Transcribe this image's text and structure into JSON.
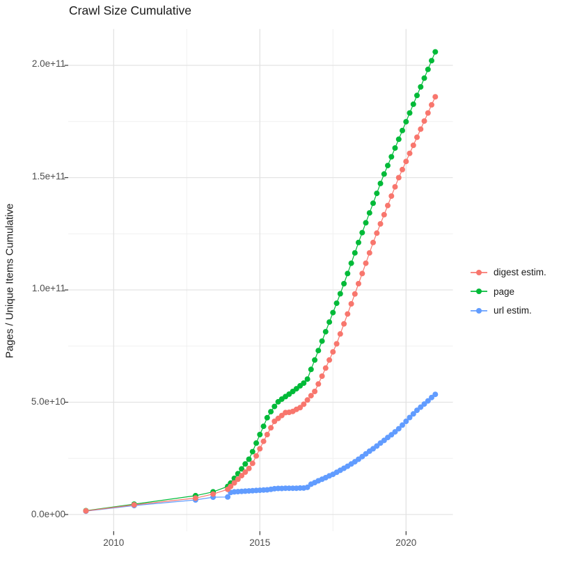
{
  "title": "Crawl Size Cumulative",
  "chart_data": {
    "type": "scatter",
    "title": "Crawl Size Cumulative",
    "xlabel": "",
    "ylabel": "Pages / Unique Items Cumulative",
    "x_tick_labels": [
      "2010",
      "2015",
      "2020"
    ],
    "x_tick_values": [
      2010,
      2015,
      2020
    ],
    "x_minor_values": [
      2012.5,
      2017.5
    ],
    "y_tick_labels": [
      "0.0e+00",
      "5.0e+10",
      "1.0e+11",
      "1.5e+11",
      "2.0e+11"
    ],
    "y_tick_values": [
      0,
      50,
      100,
      150,
      200
    ],
    "y_minor_values": [
      25,
      75,
      125,
      175
    ],
    "y_values_unit": "billions (1e9)",
    "xlim": [
      2008.45,
      2021.6
    ],
    "ylim_billions": [
      -8.6,
      216.2
    ],
    "grid": true,
    "legend_position": "right",
    "series": [
      {
        "name": "digest estim.",
        "color": "#F8766D",
        "points": [
          [
            2009.05,
            1.6
          ],
          [
            2010.7,
            4.3
          ],
          [
            2012.8,
            7.3
          ],
          [
            2013.4,
            9.1
          ],
          [
            2013.9,
            11.2
          ],
          [
            2014.0,
            12.5
          ],
          [
            2014.125,
            14.1
          ],
          [
            2014.25,
            15.7
          ],
          [
            2014.375,
            17.3
          ],
          [
            2014.5,
            18.9
          ],
          [
            2014.625,
            20.5
          ],
          [
            2014.75,
            22.8
          ],
          [
            2014.875,
            26.1
          ],
          [
            2015.0,
            29.3
          ],
          [
            2015.125,
            32.6
          ],
          [
            2015.25,
            35.6
          ],
          [
            2015.375,
            38.6
          ],
          [
            2015.5,
            41.5
          ],
          [
            2015.625,
            42.8
          ],
          [
            2015.75,
            44.1
          ],
          [
            2015.875,
            45.4
          ],
          [
            2016.0,
            45.5
          ],
          [
            2016.125,
            45.9
          ],
          [
            2016.25,
            46.8
          ],
          [
            2016.375,
            47.6
          ],
          [
            2016.5,
            49.1
          ],
          [
            2016.625,
            51.0
          ],
          [
            2016.75,
            52.9
          ],
          [
            2016.875,
            54.8
          ],
          [
            2017.0,
            58.1
          ],
          [
            2017.125,
            61.6
          ],
          [
            2017.25,
            65.2
          ],
          [
            2017.375,
            68.8
          ],
          [
            2017.5,
            72.4
          ],
          [
            2017.625,
            76.0
          ],
          [
            2017.75,
            80.4
          ],
          [
            2017.875,
            84.9
          ],
          [
            2018.0,
            89.3
          ],
          [
            2018.125,
            93.8
          ],
          [
            2018.25,
            98.2
          ],
          [
            2018.375,
            102.8
          ],
          [
            2018.5,
            107.3
          ],
          [
            2018.625,
            111.9
          ],
          [
            2018.75,
            116.5
          ],
          [
            2018.875,
            121.1
          ],
          [
            2019.0,
            125.3
          ],
          [
            2019.125,
            129.4
          ],
          [
            2019.25,
            133.5
          ],
          [
            2019.375,
            137.6
          ],
          [
            2019.5,
            141.8
          ],
          [
            2019.625,
            145.9
          ],
          [
            2019.75,
            150.0
          ],
          [
            2019.875,
            153.6
          ],
          [
            2020.0,
            157.2
          ],
          [
            2020.125,
            160.8
          ],
          [
            2020.25,
            164.4
          ],
          [
            2020.375,
            168.0
          ],
          [
            2020.5,
            171.6
          ],
          [
            2020.625,
            175.2
          ],
          [
            2020.75,
            178.8
          ],
          [
            2020.875,
            182.4
          ],
          [
            2021.0,
            186.0
          ]
        ]
      },
      {
        "name": "page",
        "color": "#00BA38",
        "points": [
          [
            2009.05,
            1.7
          ],
          [
            2010.7,
            4.6
          ],
          [
            2012.8,
            8.4
          ],
          [
            2013.4,
            10.1
          ],
          [
            2013.9,
            12.5
          ],
          [
            2014.0,
            14.0
          ],
          [
            2014.125,
            16.1
          ],
          [
            2014.25,
            18.2
          ],
          [
            2014.375,
            20.3
          ],
          [
            2014.5,
            22.5
          ],
          [
            2014.625,
            24.6
          ],
          [
            2014.75,
            28.0
          ],
          [
            2014.875,
            31.8
          ],
          [
            2015.0,
            35.6
          ],
          [
            2015.125,
            39.3
          ],
          [
            2015.25,
            43.1
          ],
          [
            2015.375,
            45.8
          ],
          [
            2015.5,
            48.1
          ],
          [
            2015.625,
            50.2
          ],
          [
            2015.75,
            51.4
          ],
          [
            2015.875,
            52.5
          ],
          [
            2016.0,
            53.6
          ],
          [
            2016.125,
            54.8
          ],
          [
            2016.25,
            56.0
          ],
          [
            2016.375,
            57.3
          ],
          [
            2016.5,
            58.5
          ],
          [
            2016.625,
            60.3
          ],
          [
            2016.75,
            64.6
          ],
          [
            2016.875,
            68.8
          ],
          [
            2017.0,
            73.0
          ],
          [
            2017.125,
            77.2
          ],
          [
            2017.25,
            81.4
          ],
          [
            2017.375,
            85.7
          ],
          [
            2017.5,
            89.9
          ],
          [
            2017.625,
            94.1
          ],
          [
            2017.75,
            98.3
          ],
          [
            2017.875,
            102.8
          ],
          [
            2018.0,
            107.3
          ],
          [
            2018.125,
            111.9
          ],
          [
            2018.25,
            116.5
          ],
          [
            2018.375,
            121.1
          ],
          [
            2018.5,
            125.5
          ],
          [
            2018.625,
            129.9
          ],
          [
            2018.75,
            134.3
          ],
          [
            2018.875,
            138.6
          ],
          [
            2019.0,
            143.0
          ],
          [
            2019.125,
            147.4
          ],
          [
            2019.25,
            151.6
          ],
          [
            2019.375,
            155.4
          ],
          [
            2019.5,
            159.3
          ],
          [
            2019.625,
            163.2
          ],
          [
            2019.75,
            167.1
          ],
          [
            2019.875,
            171.0
          ],
          [
            2020.0,
            174.9
          ],
          [
            2020.125,
            178.8
          ],
          [
            2020.25,
            182.7
          ],
          [
            2020.375,
            186.6
          ],
          [
            2020.5,
            190.4
          ],
          [
            2020.625,
            194.3
          ],
          [
            2020.75,
            198.2
          ],
          [
            2020.875,
            202.1
          ],
          [
            2021.0,
            206.0
          ]
        ]
      },
      {
        "name": "url estim.",
        "color": "#619CFF",
        "points": [
          [
            2009.05,
            1.5
          ],
          [
            2010.7,
            4.0
          ],
          [
            2012.8,
            6.5
          ],
          [
            2013.4,
            7.7
          ],
          [
            2013.9,
            7.8
          ],
          [
            2014.0,
            9.8
          ],
          [
            2014.125,
            10.1
          ],
          [
            2014.25,
            10.2
          ],
          [
            2014.375,
            10.3
          ],
          [
            2014.5,
            10.4
          ],
          [
            2014.625,
            10.5
          ],
          [
            2014.75,
            10.6
          ],
          [
            2014.875,
            10.7
          ],
          [
            2015.0,
            10.8
          ],
          [
            2015.125,
            10.9
          ],
          [
            2015.25,
            11.0
          ],
          [
            2015.375,
            11.2
          ],
          [
            2015.5,
            11.5
          ],
          [
            2015.625,
            11.6
          ],
          [
            2015.75,
            11.6
          ],
          [
            2015.875,
            11.7
          ],
          [
            2016.0,
            11.7
          ],
          [
            2016.125,
            11.7
          ],
          [
            2016.25,
            11.7
          ],
          [
            2016.375,
            11.8
          ],
          [
            2016.5,
            11.8
          ],
          [
            2016.625,
            12.1
          ],
          [
            2016.75,
            13.5
          ],
          [
            2016.875,
            14.2
          ],
          [
            2017.0,
            15.0
          ],
          [
            2017.125,
            15.7
          ],
          [
            2017.25,
            16.4
          ],
          [
            2017.375,
            17.2
          ],
          [
            2017.5,
            17.9
          ],
          [
            2017.625,
            18.8
          ],
          [
            2017.75,
            19.7
          ],
          [
            2017.875,
            20.6
          ],
          [
            2018.0,
            21.5
          ],
          [
            2018.125,
            22.5
          ],
          [
            2018.25,
            23.5
          ],
          [
            2018.375,
            24.6
          ],
          [
            2018.5,
            25.8
          ],
          [
            2018.625,
            27.0
          ],
          [
            2018.75,
            28.2
          ],
          [
            2018.875,
            29.3
          ],
          [
            2019.0,
            30.5
          ],
          [
            2019.125,
            31.8
          ],
          [
            2019.25,
            33.0
          ],
          [
            2019.375,
            34.3
          ],
          [
            2019.5,
            35.5
          ],
          [
            2019.625,
            36.8
          ],
          [
            2019.75,
            38.2
          ],
          [
            2019.875,
            39.8
          ],
          [
            2020.0,
            41.5
          ],
          [
            2020.125,
            43.2
          ],
          [
            2020.25,
            44.8
          ],
          [
            2020.375,
            46.4
          ],
          [
            2020.5,
            47.8
          ],
          [
            2020.625,
            49.2
          ],
          [
            2020.75,
            50.6
          ],
          [
            2020.875,
            52.1
          ],
          [
            2021.0,
            53.5
          ]
        ]
      }
    ]
  }
}
